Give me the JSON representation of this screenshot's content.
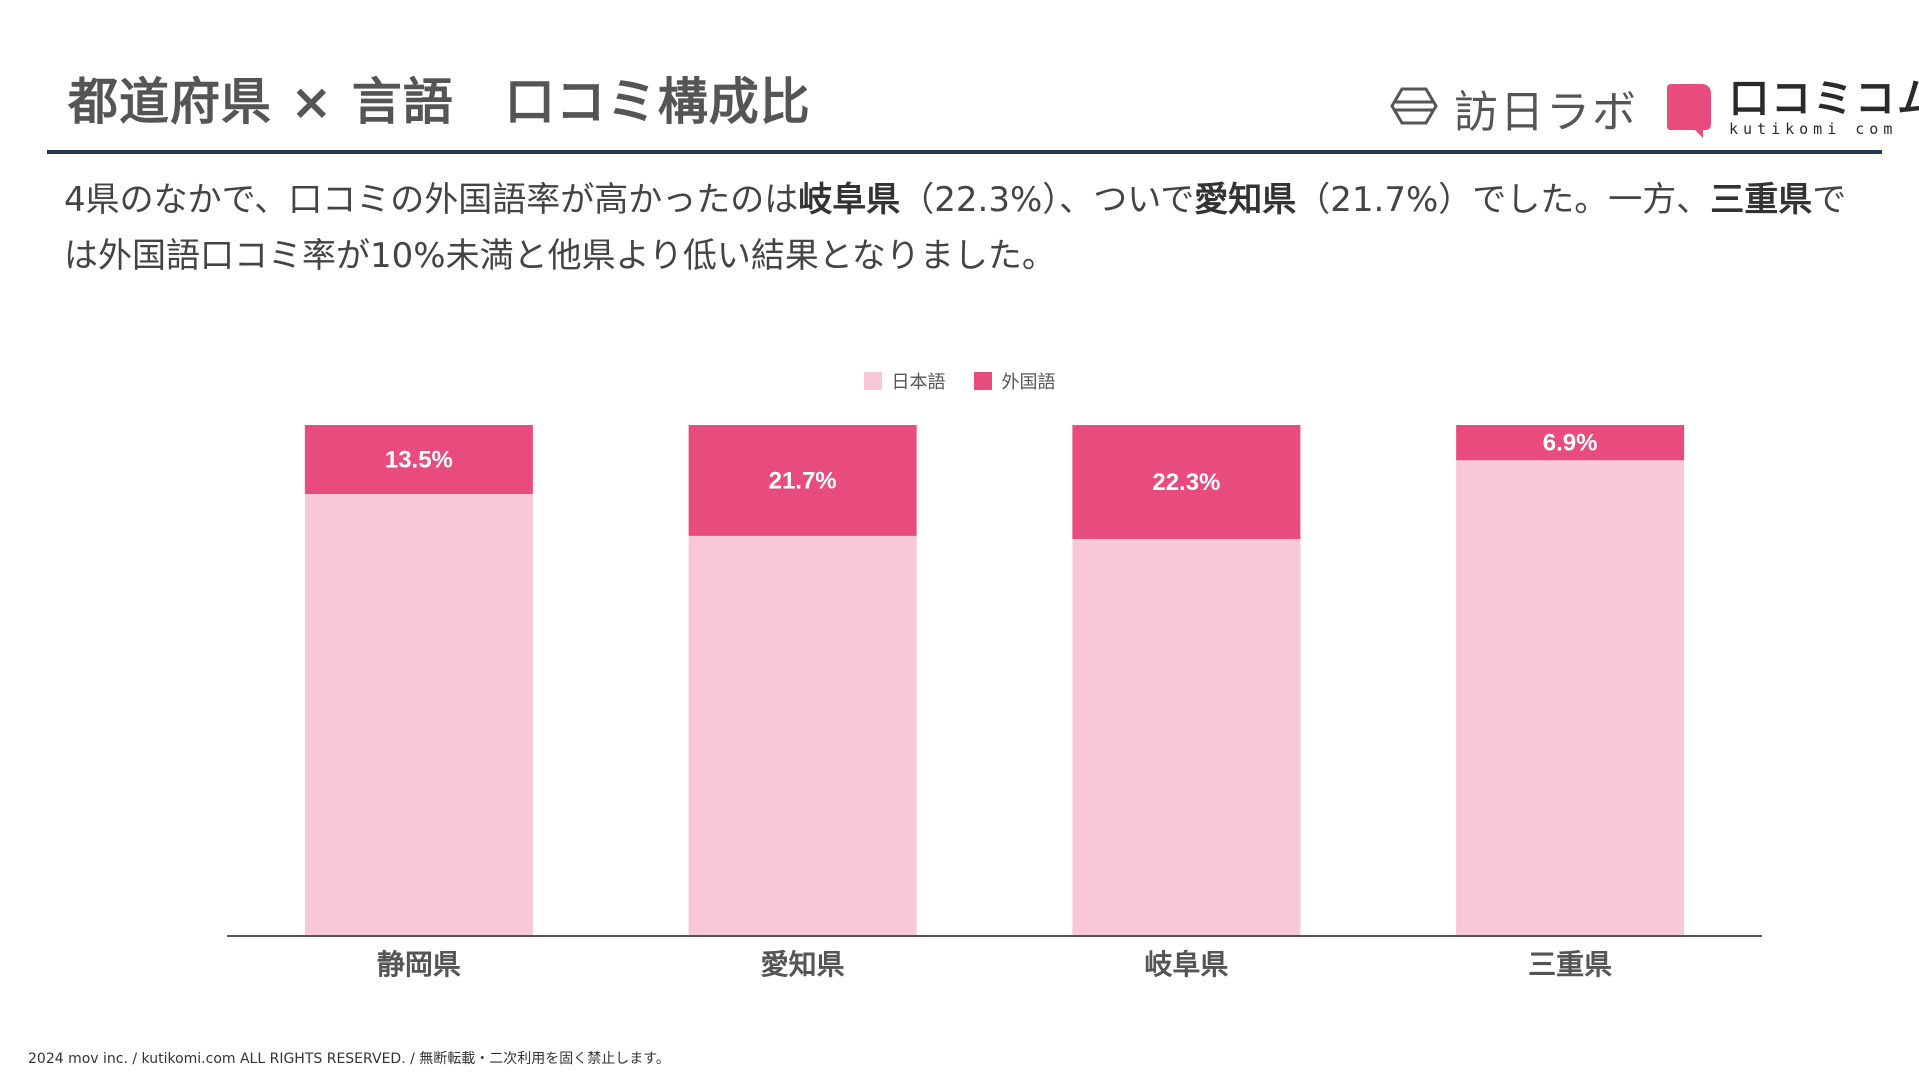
{
  "header": {
    "title": "都道府県 × 言語　口コミ構成比"
  },
  "logos": {
    "houjin_lab": "訪日ラボ",
    "kutikomi": "口コミコム",
    "kutikomi_sub": "kutikomi com",
    "brand_color": "#E84C7D"
  },
  "description": {
    "s1": "4県のなかで、口コミの外国語率が高かったのは",
    "b1": "岐阜県",
    "s2": "（22.3%）、ついで",
    "b2": "愛知県",
    "s3": "（21.7%）でした。一方、",
    "b3": "三重県",
    "s4": "では外国語口コミ率が10%未満と他県より低い結果となりました。"
  },
  "chart_data": {
    "type": "bar",
    "stacked": true,
    "percent_stacked": true,
    "categories": [
      "静岡県",
      "愛知県",
      "岐阜県",
      "三重県"
    ],
    "series": [
      {
        "name": "日本語",
        "color": "#F8C8D7",
        "values": [
          86.5,
          78.3,
          77.7,
          93.1
        ]
      },
      {
        "name": "外国語",
        "color": "#E84C7D",
        "values": [
          13.5,
          21.7,
          22.3,
          6.9
        ]
      }
    ],
    "data_labels": [
      "13.5%",
      "21.7%",
      "22.3%",
      "6.9%"
    ],
    "ylim": [
      0,
      100
    ],
    "legend_position": "top-center",
    "grid": false
  },
  "footer": {
    "text": "2024 mov inc. / kutikomi.com ALL RIGHTS RESERVED. / 無断転載・二次利用を固く禁止します。"
  }
}
